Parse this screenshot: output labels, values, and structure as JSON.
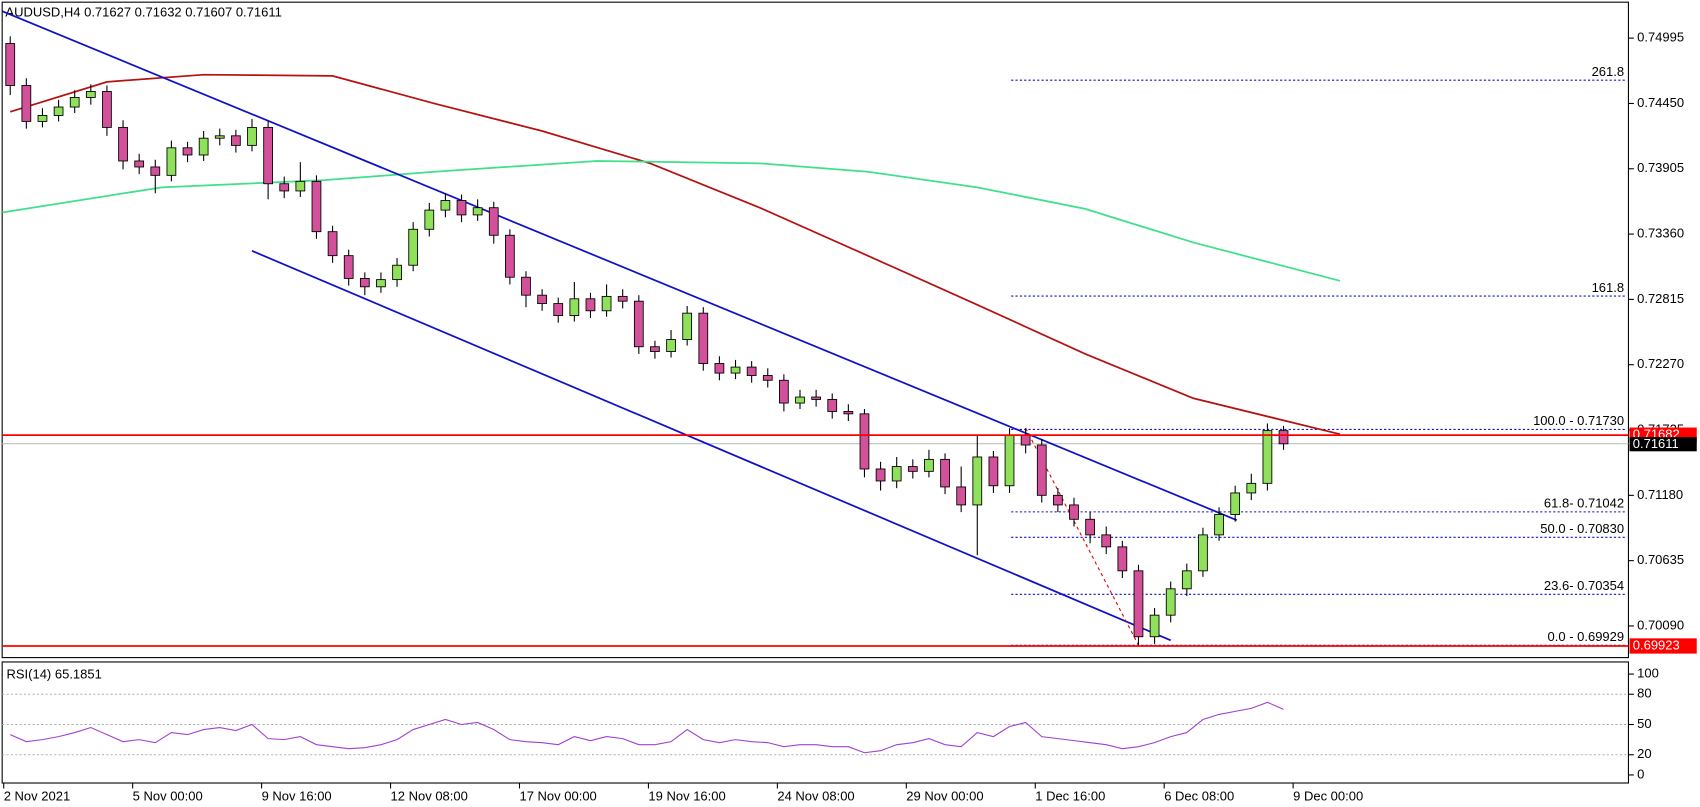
{
  "chart_data": {
    "type": "candlestick",
    "title": "AUDUSD,H4  0.71627 0.71632 0.71607 0.71611",
    "open": [
      0.7495,
      0.746,
      0.743,
      0.7435,
      0.7442,
      0.745,
      0.7455,
      0.7425,
      0.7397,
      0.7392,
      0.7385,
      0.7408,
      0.7402,
      0.7416,
      0.7418,
      0.741,
      0.7425,
      0.7378,
      0.7372,
      0.738,
      0.7338,
      0.7318,
      0.7299,
      0.7292,
      0.7298,
      0.731,
      0.734,
      0.7356,
      0.7364,
      0.7352,
      0.7358,
      0.7335,
      0.73,
      0.7285,
      0.7278,
      0.7268,
      0.7282,
      0.7272,
      0.7284,
      0.728,
      0.7242,
      0.7238,
      0.7248,
      0.727,
      0.7228,
      0.722,
      0.7225,
      0.7218,
      0.7214,
      0.7195,
      0.72,
      0.7198,
      0.7188,
      0.7186,
      0.714,
      0.713,
      0.7142,
      0.7138,
      0.7148,
      0.7125,
      0.711,
      0.715,
      0.7126,
      0.7168,
      0.716,
      0.7118,
      0.711,
      0.7098,
      0.7085,
      0.7075,
      0.7055,
      0.7,
      0.7018,
      0.704,
      0.7055,
      0.7085,
      0.7102,
      0.712,
      0.7128,
      0.7172
    ],
    "high": [
      0.7501,
      0.7466,
      0.7441,
      0.7448,
      0.7456,
      0.7461,
      0.746,
      0.7431,
      0.7403,
      0.7398,
      0.7414,
      0.7413,
      0.7422,
      0.7424,
      0.7423,
      0.7432,
      0.743,
      0.7384,
      0.7396,
      0.7385,
      0.7343,
      0.7323,
      0.7304,
      0.7304,
      0.7316,
      0.7346,
      0.7362,
      0.737,
      0.7369,
      0.7365,
      0.7363,
      0.734,
      0.7305,
      0.729,
      0.7283,
      0.7296,
      0.7287,
      0.7294,
      0.729,
      0.7285,
      0.7247,
      0.7256,
      0.7276,
      0.7275,
      0.7234,
      0.7231,
      0.723,
      0.7224,
      0.7219,
      0.7206,
      0.7206,
      0.7203,
      0.7194,
      0.719,
      0.7146,
      0.715,
      0.7148,
      0.7156,
      0.7153,
      0.7142,
      0.7168,
      0.7155,
      0.7174,
      0.7174,
      0.7165,
      0.7124,
      0.7116,
      0.7104,
      0.7092,
      0.708,
      0.706,
      0.7024,
      0.7046,
      0.7061,
      0.7091,
      0.7108,
      0.7126,
      0.7136,
      0.7178,
      0.7176
    ],
    "low": [
      0.7452,
      0.7424,
      0.7425,
      0.743,
      0.7437,
      0.7444,
      0.7418,
      0.739,
      0.7386,
      0.737,
      0.738,
      0.7396,
      0.7397,
      0.741,
      0.7404,
      0.7405,
      0.7365,
      0.7366,
      0.7367,
      0.7332,
      0.7312,
      0.7293,
      0.7285,
      0.7287,
      0.7292,
      0.7305,
      0.7334,
      0.735,
      0.7346,
      0.7347,
      0.7328,
      0.7294,
      0.7275,
      0.7272,
      0.7262,
      0.7263,
      0.7266,
      0.7267,
      0.7274,
      0.7236,
      0.7232,
      0.7233,
      0.7243,
      0.7222,
      0.7214,
      0.7215,
      0.7212,
      0.7208,
      0.7188,
      0.719,
      0.7192,
      0.7182,
      0.718,
      0.7133,
      0.7122,
      0.7124,
      0.7132,
      0.7133,
      0.7119,
      0.7104,
      0.7068,
      0.712,
      0.712,
      0.7153,
      0.7112,
      0.7104,
      0.7092,
      0.7078,
      0.7069,
      0.7049,
      0.6993,
      0.6994,
      0.7012,
      0.7034,
      0.705,
      0.708,
      0.7096,
      0.7114,
      0.7122,
      0.7156
    ],
    "close": [
      0.746,
      0.743,
      0.7435,
      0.7442,
      0.745,
      0.7455,
      0.7425,
      0.7397,
      0.7392,
      0.7385,
      0.7408,
      0.7402,
      0.7416,
      0.7418,
      0.741,
      0.7425,
      0.7378,
      0.7372,
      0.738,
      0.7338,
      0.7318,
      0.7299,
      0.7292,
      0.7298,
      0.731,
      0.734,
      0.7356,
      0.7364,
      0.7352,
      0.7358,
      0.7335,
      0.73,
      0.7285,
      0.7278,
      0.7268,
      0.7282,
      0.7272,
      0.7284,
      0.728,
      0.7242,
      0.7238,
      0.7248,
      0.727,
      0.7228,
      0.722,
      0.7225,
      0.7218,
      0.7214,
      0.7195,
      0.72,
      0.7198,
      0.7188,
      0.7186,
      0.714,
      0.713,
      0.7142,
      0.7138,
      0.7148,
      0.7125,
      0.711,
      0.715,
      0.7126,
      0.7168,
      0.716,
      0.7118,
      0.711,
      0.7098,
      0.7085,
      0.7075,
      0.7055,
      0.7,
      0.7018,
      0.704,
      0.7055,
      0.7085,
      0.7102,
      0.712,
      0.7128,
      0.7172,
      0.7161
    ],
    "bull_color": "#8fe05a",
    "bear_color": "#d2519a",
    "xlim": [
      -0.5,
      100.4
    ],
    "xticks": [
      {
        "value": 0,
        "label": "2 Nov 2021"
      },
      {
        "value": 8,
        "label": "5 Nov 00:00"
      },
      {
        "value": 16,
        "label": "9 Nov 16:00"
      },
      {
        "value": 24,
        "label": "12 Nov 08:00"
      },
      {
        "value": 32,
        "label": "17 Nov 00:00"
      },
      {
        "value": 40,
        "label": "19 Nov 16:00"
      },
      {
        "value": 48,
        "label": "24 Nov 08:00"
      },
      {
        "value": 56,
        "label": "29 Nov 00:00"
      },
      {
        "value": 64,
        "label": "1 Dec 16:00"
      },
      {
        "value": 72,
        "label": "6 Dec 08:00"
      },
      {
        "value": 80,
        "label": "9 Dec 00:00"
      }
    ],
    "ylim": [
      0.69826,
      0.75295
    ],
    "yticks": [
      0.74995,
      {
        "value": 0.7445,
        "label": "0.74450"
      },
      {
        "value": 0.73905,
        "label": "0.73905"
      },
      {
        "value": 0.7336,
        "label": "0.73360"
      },
      {
        "value": 0.72815,
        "label": "0.72815"
      },
      {
        "value": 0.7227,
        "label": "0.72270"
      },
      {
        "value": 0.71725,
        "label": "0.71725"
      },
      {
        "value": 0.7118,
        "label": "0.71180"
      },
      {
        "value": 0.70635,
        "label": "0.70635"
      },
      {
        "value": 0.7009,
        "label": "0.70090"
      }
    ],
    "moving_averages": [
      {
        "color": "#b5120f",
        "x": [
          0,
          6,
          12,
          20,
          26.3,
          33,
          39.7,
          46.5,
          53.2,
          60,
          66.7,
          73.4,
          82.5
        ],
        "values": [
          0.7438,
          0.7463,
          0.7469,
          0.7468,
          0.7445,
          0.7422,
          0.7395,
          0.7358,
          0.7318,
          0.7277,
          0.7236,
          0.7199,
          0.7169
        ]
      },
      {
        "color": "#3ee08a",
        "x": [
          -0.5,
          9.4,
          19.5,
          26.3,
          36.4,
          46.5,
          53.2,
          60,
          66.7,
          73.4,
          82.5
        ],
        "values": [
          0.7354,
          0.7375,
          0.7381,
          0.7388,
          0.7397,
          0.7395,
          0.7388,
          0.7375,
          0.7357,
          0.7329,
          0.7297
        ]
      }
    ],
    "trendlines": [
      {
        "color": "#1010c8",
        "x": [
          -0.5,
          76.1
        ],
        "values": [
          0.7522,
          0.70973
        ]
      },
      {
        "color": "#1010c8",
        "x": [
          15,
          72
        ],
        "values": [
          0.7322,
          0.6997
        ]
      },
      {
        "color": "#e00000",
        "dash": true,
        "x": [
          63,
          70
        ],
        "values": [
          0.7174,
          0.6993
        ]
      }
    ],
    "hlines": [
      {
        "value": 0.71682,
        "color": "#ff0000"
      },
      {
        "value": 0.69923,
        "color": "#ff0000"
      }
    ],
    "current_price": 0.71611,
    "fib": {
      "x_start": 62.1,
      "color": "#1010c8",
      "levels": [
        {
          "value": 0.74644,
          "label": "261.8"
        },
        {
          "value": 0.72843,
          "label": "161.8"
        },
        {
          "value": 0.7173,
          "label": "100.0 - 0.71730"
        },
        {
          "value": 0.71042,
          "label": "61.8- 0.71042"
        },
        {
          "value": 0.7083,
          "label": "50.0 - 0.70830"
        },
        {
          "value": 0.70354,
          "label": "23.6- 0.70354"
        },
        {
          "value": 0.69929,
          "label": "0.0 - 0.69929"
        }
      ]
    },
    "indicator": {
      "type": "line",
      "title": "RSI(14) 65.1851",
      "color": "#a040d0",
      "values": [
        40,
        33,
        35,
        38,
        42,
        47,
        40,
        33,
        35,
        32,
        42,
        40,
        45,
        47,
        44,
        50,
        36,
        35,
        38,
        30,
        28,
        26,
        27,
        30,
        35,
        45,
        50,
        55,
        50,
        52,
        45,
        35,
        33,
        32,
        30,
        38,
        34,
        38,
        36,
        30,
        30,
        33,
        45,
        35,
        32,
        35,
        33,
        32,
        28,
        30,
        30,
        28,
        28,
        22,
        24,
        30,
        32,
        36,
        30,
        28,
        42,
        38,
        48,
        52,
        38,
        36,
        34,
        32,
        30,
        26,
        28,
        32,
        38,
        42,
        55,
        60,
        63,
        66,
        72,
        65
      ],
      "ylim": [
        -8,
        112
      ],
      "yticks": [
        100,
        80,
        50,
        20,
        0
      ],
      "grid_levels": [
        80,
        50,
        20
      ]
    }
  }
}
